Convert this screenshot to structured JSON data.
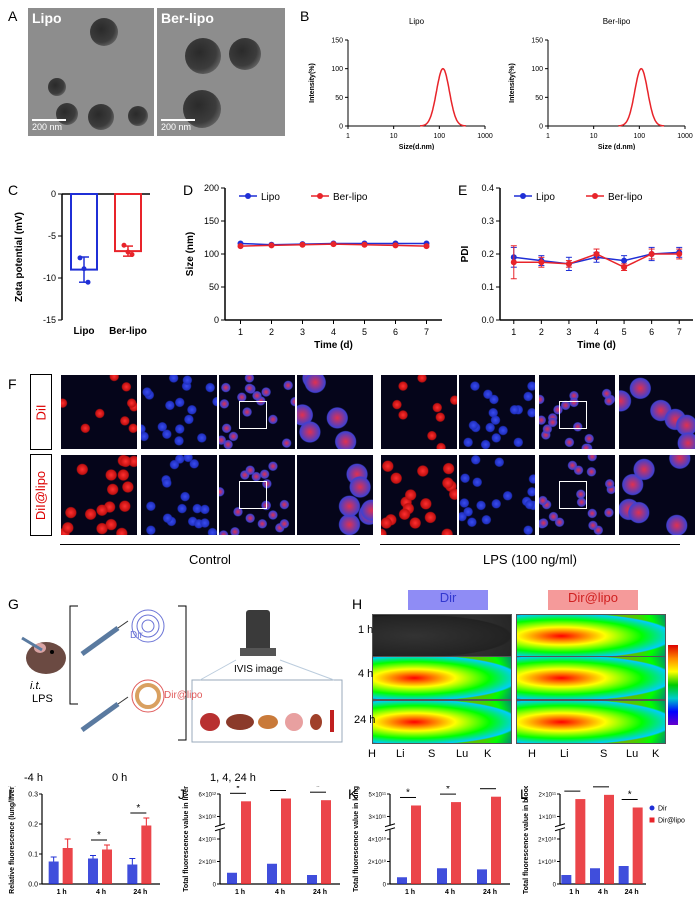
{
  "panels": {
    "A": {
      "letter": "A",
      "images": [
        {
          "label": "Lipo",
          "scale": "200 nm"
        },
        {
          "label": "Ber-lipo",
          "scale": "200 nm"
        }
      ]
    },
    "B": {
      "letter": "B",
      "plots": [
        {
          "title": "Lipo"
        },
        {
          "title": "Ber-lipo"
        }
      ]
    },
    "C": {
      "letter": "C"
    },
    "D": {
      "letter": "D"
    },
    "E": {
      "letter": "E"
    },
    "F": {
      "letter": "F",
      "row_labels": [
        "DiI",
        "DiI@lipo"
      ],
      "group_labels": [
        "Control",
        "LPS (100 ng/ml)"
      ]
    },
    "G": {
      "letter": "G",
      "dir_label": "Dir",
      "dirlipo_label": "Dir@lipo",
      "ivis_label": "IVIS image",
      "route": "i.t.",
      "lps": "LPS",
      "timeline": [
        "-4 h",
        "0 h",
        "1, 4, 24 h"
      ]
    },
    "H": {
      "letter": "H",
      "legend_dir": "Dir",
      "legend_dirlipo": "Dir@lipo",
      "times": [
        "1 h",
        "4 h",
        "24 h"
      ],
      "organs": [
        "H",
        "Li",
        "S",
        "Lu",
        "K"
      ]
    },
    "I": {
      "letter": "I"
    },
    "J": {
      "letter": "J"
    },
    "K": {
      "letter": "K"
    },
    "L": {
      "letter": "L",
      "legend": [
        "Dir",
        "Dir@lipo"
      ]
    }
  },
  "chart_data": [
    {
      "id": "B1",
      "type": "line",
      "title": "Lipo",
      "xlabel": "Size(d.nm)",
      "ylabel": "Intensity(%)",
      "xscale": "log",
      "xlim": [
        1,
        1000
      ],
      "ylim": [
        0,
        150
      ],
      "xticks": [
        "1",
        "10",
        "100",
        "1000"
      ],
      "yticks": [
        "0",
        "50",
        "100",
        "150"
      ],
      "peak": 120,
      "peak_value": 100
    },
    {
      "id": "B2",
      "type": "line",
      "title": "Ber-lipo",
      "xlabel": "Size (d.nm)",
      "ylabel": "Intensity(%)",
      "xscale": "log",
      "xlim": [
        1,
        1000
      ],
      "ylim": [
        0,
        150
      ],
      "xticks": [
        "1",
        "10",
        "100",
        "1000"
      ],
      "yticks": [
        "0",
        "50",
        "100",
        "150"
      ],
      "peak": 110,
      "peak_value": 100
    },
    {
      "id": "C",
      "type": "bar",
      "ylabel": "Zeta potential (mV)",
      "ylim": [
        -15,
        0
      ],
      "yticks": [
        "0",
        "-5",
        "-10",
        "-15"
      ],
      "categories": [
        "Lipo",
        "Ber-lipo"
      ],
      "values": [
        -9.0,
        -6.8
      ],
      "errors": [
        1.5,
        0.6
      ],
      "colors": [
        "#1f2fd6",
        "#e8242a"
      ],
      "points": [
        [
          -7.6,
          -8.9,
          -10.5
        ],
        [
          -6.1,
          -6.9,
          -7.2
        ]
      ]
    },
    {
      "id": "D",
      "type": "line",
      "xlabel": "Time (d)",
      "ylabel": "Size (nm)",
      "ylim": [
        0,
        200
      ],
      "yticks": [
        "0",
        "50",
        "100",
        "150",
        "200"
      ],
      "x": [
        1,
        2,
        3,
        4,
        5,
        6,
        7
      ],
      "series": [
        {
          "name": "Lipo",
          "color": "#1f2fd6",
          "values": [
            116,
            114,
            115,
            116,
            116,
            116,
            116
          ]
        },
        {
          "name": "Ber-lipo",
          "color": "#e8242a",
          "values": [
            112,
            113,
            114,
            115,
            114,
            113,
            112
          ]
        }
      ]
    },
    {
      "id": "E",
      "type": "line",
      "xlabel": "Time (d)",
      "ylabel": "PDI",
      "ylim": [
        0.0,
        0.4
      ],
      "yticks": [
        "0.0",
        "0.1",
        "0.2",
        "0.3",
        "0.4"
      ],
      "x": [
        1,
        2,
        3,
        4,
        5,
        6,
        7
      ],
      "series": [
        {
          "name": "Lipo",
          "color": "#1f2fd6",
          "values": [
            0.19,
            0.18,
            0.17,
            0.19,
            0.18,
            0.2,
            0.205
          ],
          "errors": [
            0.03,
            0.015,
            0.02,
            0.015,
            0.015,
            0.02,
            0.015
          ]
        },
        {
          "name": "Ber-lipo",
          "color": "#e8242a",
          "values": [
            0.175,
            0.175,
            0.17,
            0.2,
            0.16,
            0.2,
            0.2
          ],
          "errors": [
            0.05,
            0.015,
            0.01,
            0.015,
            0.01,
            0.015,
            0.015
          ]
        }
      ]
    },
    {
      "id": "I",
      "type": "bar",
      "ylabel": "Relative fluorescence (lung/liver)",
      "ylim": [
        0,
        0.3
      ],
      "yticks": [
        "0.0",
        "0.1",
        "0.2",
        "0.3"
      ],
      "categories": [
        "1 h",
        "4 h",
        "24 h"
      ],
      "series": [
        {
          "name": "Dir",
          "color": "#1f2fd6",
          "values": [
            0.075,
            0.085,
            0.065
          ],
          "errors": [
            0.015,
            0.01,
            0.02
          ]
        },
        {
          "name": "Dir@lipo",
          "color": "#e8242a",
          "values": [
            0.12,
            0.115,
            0.195
          ],
          "errors": [
            0.03,
            0.015,
            0.025
          ]
        }
      ],
      "significance": [
        "",
        "*",
        "*"
      ]
    },
    {
      "id": "J",
      "type": "bar",
      "ylabel": "Total fluorescence value in liver",
      "ylim": [
        0,
        6000000000000.0
      ],
      "yticks": [
        "0",
        "2×10¹¹",
        "4×10¹¹",
        "3×10¹²",
        "6×10¹²"
      ],
      "categories": [
        "1 h",
        "4 h",
        "24 h"
      ],
      "series": [
        {
          "name": "Dir",
          "color": "#1f2fd6",
          "values": [
            100000000000.0,
            180000000000.0,
            80000000000.0
          ]
        },
        {
          "name": "Dir@lipo",
          "color": "#e8242a",
          "values": [
            4700000000000.0,
            5200000000000.0,
            4900000000000.0
          ]
        }
      ],
      "significance": [
        "*",
        "*",
        "*"
      ]
    },
    {
      "id": "K",
      "type": "bar",
      "ylabel": "Total fluorescence value in lung",
      "ylim": [
        0,
        500000000000.0
      ],
      "yticks": [
        "0",
        "2×10¹⁰",
        "4×10¹⁰",
        "3×10¹¹",
        "5×10¹¹"
      ],
      "categories": [
        "1 h",
        "4 h",
        "24 h"
      ],
      "series": [
        {
          "name": "Dir",
          "color": "#1f2fd6",
          "values": [
            6000000000.0,
            14000000000.0,
            13000000000.0
          ]
        },
        {
          "name": "Dir@lipo",
          "color": "#e8242a",
          "values": [
            330000000000.0,
            380000000000.0,
            460000000000.0
          ]
        }
      ],
      "significance": [
        "*",
        "*",
        "*"
      ]
    },
    {
      "id": "L",
      "type": "bar",
      "ylabel": "Total fluorescence value in blood",
      "ylim": [
        0,
        200000000000.0
      ],
      "yticks": [
        "0",
        "1×10¹⁰",
        "2×10¹⁰",
        "1×10¹¹",
        "2×10¹¹"
      ],
      "categories": [
        "1 h",
        "4 h",
        "24 h"
      ],
      "series": [
        {
          "name": "Dir",
          "color": "#1f2fd6",
          "values": [
            4000000000.0,
            7000000000.0,
            8000000000.0
          ]
        },
        {
          "name": "Dir@lipo",
          "color": "#e8242a",
          "values": [
            170000000000.0,
            195000000000.0,
            120000000000.0
          ]
        }
      ],
      "significance": [
        "*",
        "*",
        "*"
      ]
    }
  ]
}
